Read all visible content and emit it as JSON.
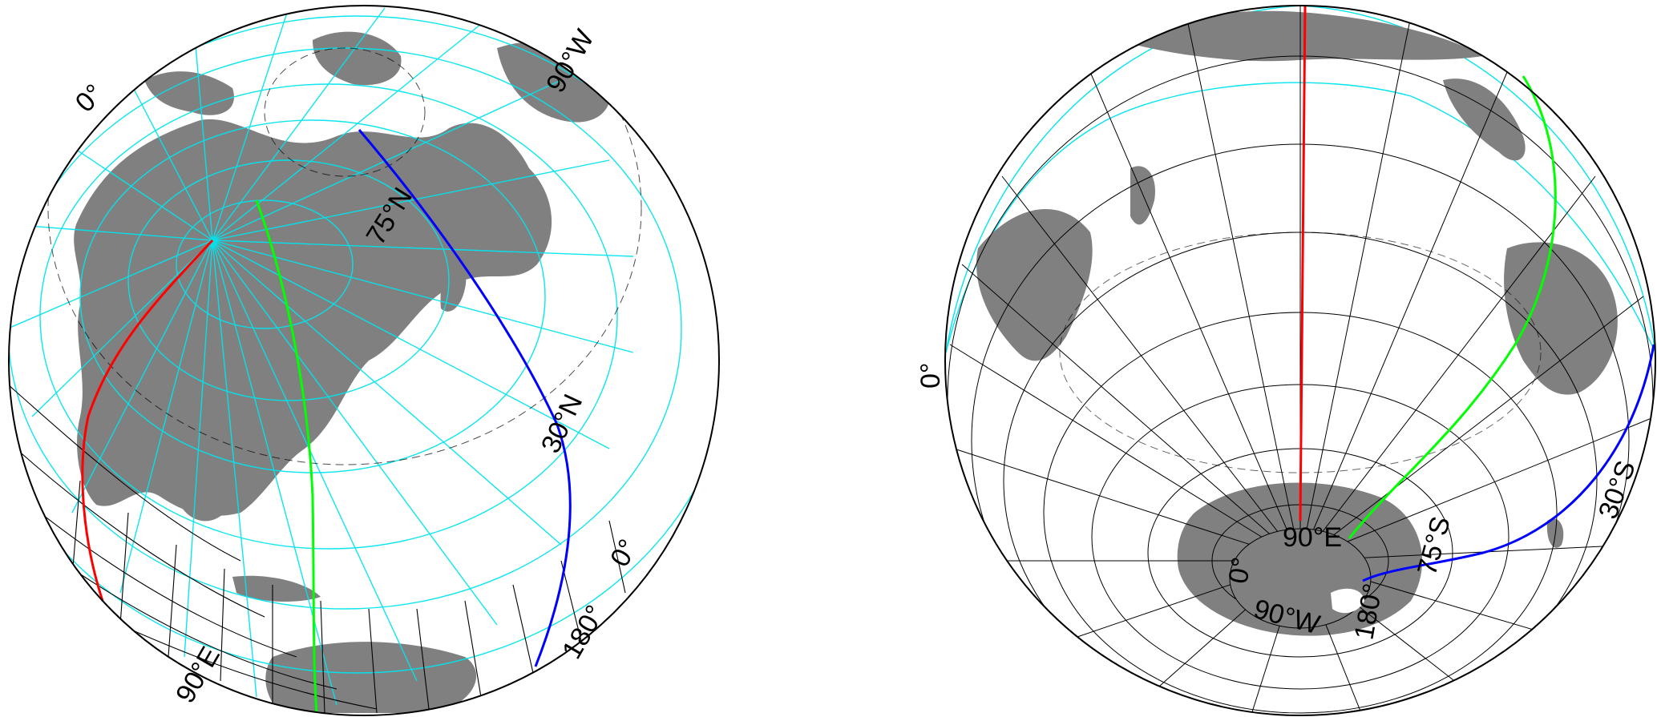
{
  "colors": {
    "land": "#808080",
    "ocean": "#ffffff",
    "grid_cyan": "#00e5ee",
    "grid_black": "#000000",
    "line_red": "#ff0000",
    "line_green": "#00ff00",
    "line_blue": "#0000ff",
    "antarctic_white": "#ffffff"
  },
  "globes": [
    {
      "id": "north",
      "labels": {
        "top_left_meridian": "0°",
        "top_right_meridian": "90°W",
        "lat_75": "75°N",
        "lat_30": "30°N",
        "equator": "0°",
        "bottom_left_meridian": "90°E",
        "bottom_right_meridian": "180°"
      }
    },
    {
      "id": "south",
      "labels": {
        "left_equator": "0°",
        "lat_30": "30°S",
        "lat_75": "75°S",
        "meridian_90e": "90°E",
        "meridian_0": "0°",
        "meridian_90w": "90°W",
        "meridian_180": "180°"
      }
    }
  ]
}
